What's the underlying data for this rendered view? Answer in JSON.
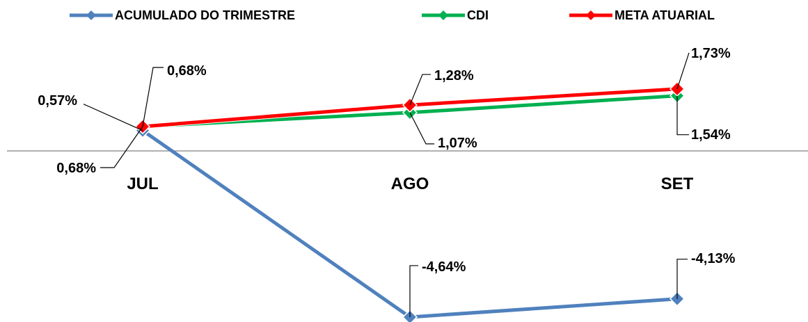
{
  "chart_data": {
    "type": "line",
    "title": "",
    "xlabel": "",
    "ylabel": "",
    "categories": [
      "JUL",
      "AGO",
      "SET"
    ],
    "ylim": [
      -5.0,
      2.2
    ],
    "grid": false,
    "legend_position": "top",
    "series": [
      {
        "name": "ACUMULADO DO TRIMESTRE",
        "color": "#4F81BD",
        "values": [
          0.57,
          -4.64,
          -4.13
        ],
        "labels": [
          "0,57%",
          "-4,64%",
          "-4,13%"
        ]
      },
      {
        "name": "CDI",
        "color": "#00B050",
        "values": [
          0.68,
          1.07,
          1.54
        ],
        "labels": [
          "0,68%",
          "1,07%",
          "1,54%"
        ]
      },
      {
        "name": "META ATUARIAL",
        "color": "#FF0000",
        "values": [
          0.68,
          1.28,
          1.73
        ],
        "labels": [
          "0,68%",
          "1,28%",
          "1,73%"
        ]
      }
    ]
  }
}
